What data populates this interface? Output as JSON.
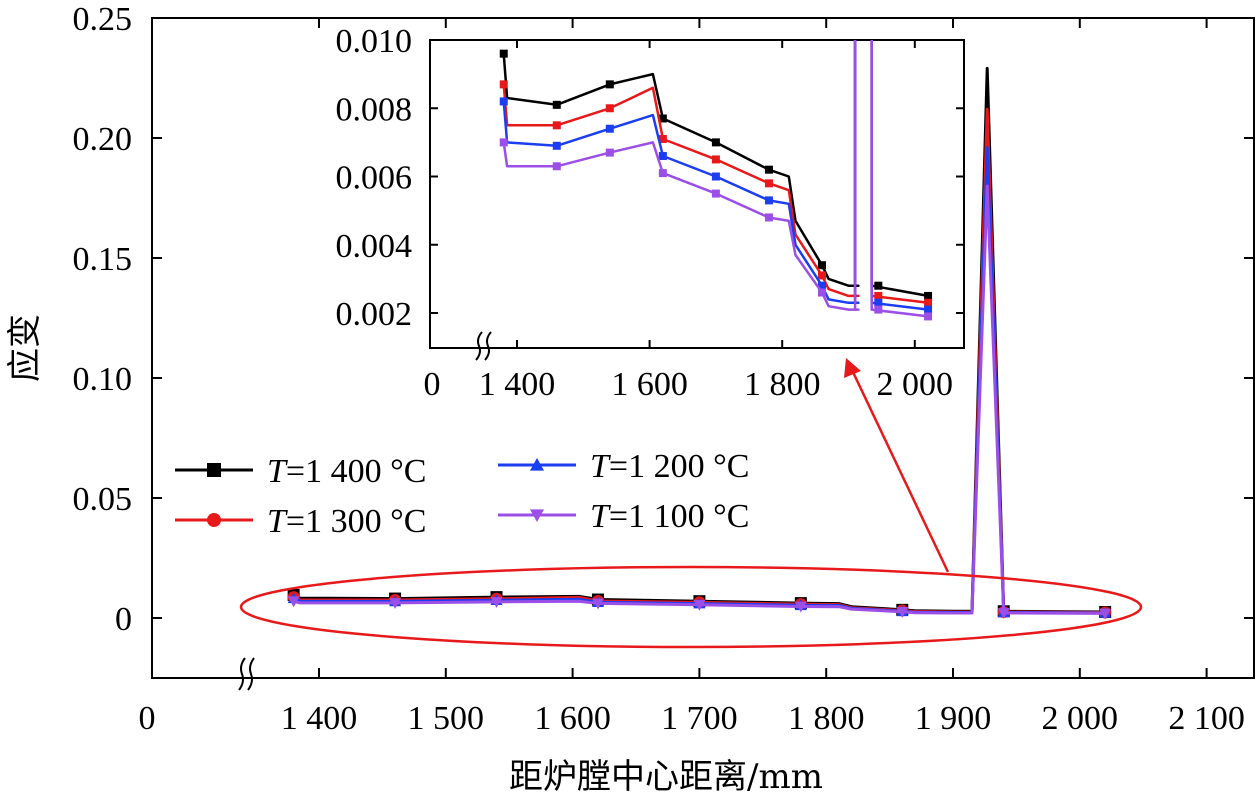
{
  "chart_data": [
    {
      "type": "line",
      "xlabel": "距炉膛中心距离/mm",
      "ylabel": "应变",
      "xlim": [
        1300,
        2100
      ],
      "ylim": [
        -0.025,
        0.25
      ],
      "x_axis_break": true,
      "x_ticks": [
        0,
        1400,
        1500,
        1600,
        1700,
        1800,
        1900,
        2000,
        2100
      ],
      "x_tick_labels": [
        "0",
        "1 400",
        "1 500",
        "1 600",
        "1 700",
        "1 800",
        "1 900",
        "2 000",
        "2 100"
      ],
      "y_ticks": [
        0,
        0.05,
        0.1,
        0.15,
        0.2,
        0.25
      ],
      "y_tick_labels": [
        "0",
        "0.05",
        "0.10",
        "0.15",
        "0.20",
        "0.25"
      ],
      "legend_position": "middle-left",
      "x": [
        1380,
        1385,
        1460,
        1540,
        1605,
        1620,
        1700,
        1780,
        1810,
        1820,
        1860,
        1870,
        1900,
        1915,
        1927,
        1940,
        2020
      ],
      "series": [
        {
          "name": "T=1 400 °C",
          "color": "#000000",
          "marker": "square",
          "values": [
            0.0096,
            0.0083,
            0.0081,
            0.0087,
            0.009,
            0.0077,
            0.007,
            0.0062,
            0.006,
            0.0047,
            0.0034,
            0.003,
            0.0028,
            0.0028,
            0.229,
            0.0028,
            0.0025
          ]
        },
        {
          "name": "T=1 300 °C",
          "color": "#e8191a",
          "marker": "circle",
          "values": [
            0.0087,
            0.0075,
            0.0075,
            0.008,
            0.0086,
            0.0071,
            0.0065,
            0.0058,
            0.0056,
            0.0043,
            0.0031,
            0.0027,
            0.0025,
            0.0025,
            0.212,
            0.0025,
            0.0023
          ]
        },
        {
          "name": "T=1 200 °C",
          "color": "#1a3ef0",
          "marker": "triangle-up",
          "values": [
            0.0082,
            0.007,
            0.0069,
            0.0074,
            0.0078,
            0.0066,
            0.006,
            0.0053,
            0.0052,
            0.004,
            0.0028,
            0.0024,
            0.0023,
            0.0023,
            0.196,
            0.0023,
            0.0021
          ]
        },
        {
          "name": "T=1 100 °C",
          "color": "#9b4fe6",
          "marker": "triangle-down",
          "values": [
            0.007,
            0.0063,
            0.0063,
            0.0067,
            0.007,
            0.0061,
            0.0055,
            0.0048,
            0.0047,
            0.0037,
            0.0026,
            0.0022,
            0.0021,
            0.0021,
            0.18,
            0.0021,
            0.0019
          ]
        }
      ],
      "highlight": {
        "shape": "ellipse",
        "color": "#e8191a"
      }
    },
    {
      "type": "line",
      "role": "inset (zoom of highlighted region)",
      "xlim": [
        1300,
        2060
      ],
      "ylim": [
        0.0013,
        0.01
      ],
      "x_axis_break": true,
      "x_ticks": [
        0,
        1400,
        1600,
        1800,
        2000
      ],
      "x_tick_labels": [
        "0",
        "1 400",
        "1 600",
        "1 800",
        "2 000"
      ],
      "y_ticks": [
        0.002,
        0.004,
        0.006,
        0.008,
        0.01
      ],
      "y_tick_labels": [
        "0.002",
        "0.004",
        "0.006",
        "0.008",
        "0.010"
      ]
    }
  ]
}
